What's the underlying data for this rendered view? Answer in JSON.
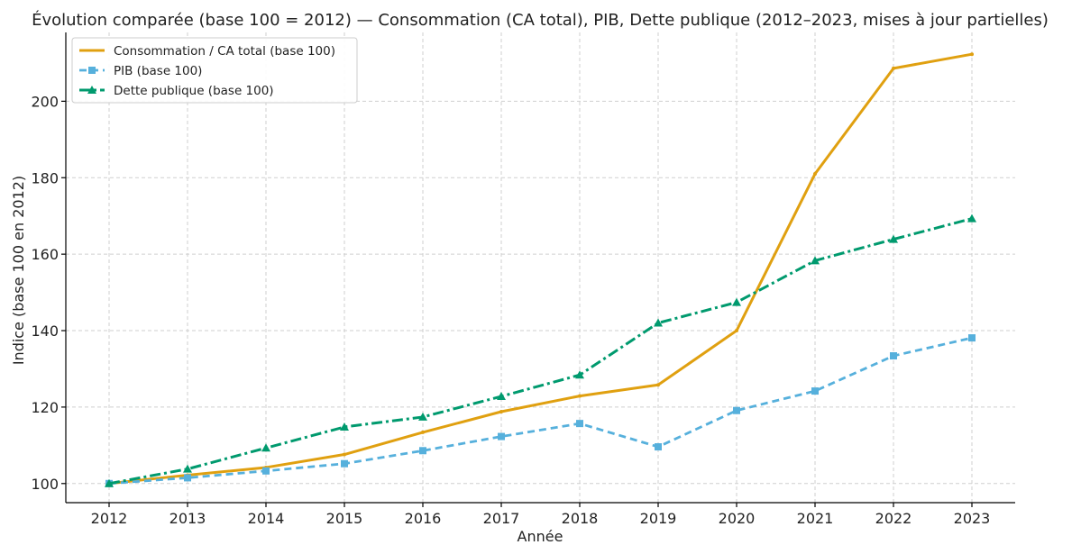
{
  "chart_data": {
    "type": "line",
    "title": "Évolution comparée (base 100 = 2012) — Consommation (CA total), PIB, Dette publique (2012–2023, mises à jour partielles)",
    "xlabel": "Année",
    "ylabel": "Indice (base 100 en 2012)",
    "categories": [
      "2012",
      "2013",
      "2014",
      "2015",
      "2016",
      "2017",
      "2018",
      "2019",
      "2020",
      "2021",
      "2022",
      "2023"
    ],
    "ylim": [
      95,
      218
    ],
    "yticks": [
      100,
      120,
      140,
      160,
      180,
      200
    ],
    "grid": true,
    "legend_position": "top-left",
    "series": [
      {
        "name": "Consommation / CA total (base 100)",
        "color": "#E0A010",
        "marker": "none",
        "values": [
          100,
          102.2,
          104.2,
          107.6,
          113.4,
          118.8,
          122.9,
          125.8,
          140.0,
          181.0,
          208.6,
          212.3
        ]
      },
      {
        "name": "PIB (base 100)",
        "color": "#56B0DC",
        "marker": "square",
        "values": [
          100,
          101.5,
          103.3,
          105.2,
          108.6,
          112.3,
          115.7,
          109.6,
          119.1,
          124.2,
          133.4,
          138.1
        ]
      },
      {
        "name": "Dette publique (base 100)",
        "color": "#009A6E",
        "marker": "triangle",
        "values": [
          100,
          103.8,
          109.3,
          114.8,
          117.4,
          122.8,
          128.4,
          142.0,
          147.4,
          158.3,
          163.9,
          169.3
        ]
      }
    ]
  }
}
